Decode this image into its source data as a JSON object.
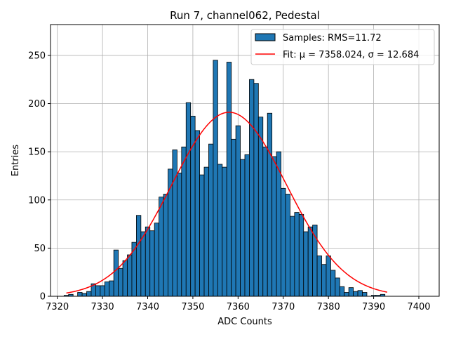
{
  "chart_data": {
    "type": "bar",
    "title": "Run 7, channel062, Pedestal",
    "xlabel": "ADC Counts",
    "ylabel": "Entries",
    "xlim": [
      7318.5,
      7404.5
    ],
    "ylim": [
      0,
      282
    ],
    "xticks": [
      7320,
      7330,
      7340,
      7350,
      7360,
      7370,
      7380,
      7390,
      7400
    ],
    "yticks": [
      0,
      50,
      100,
      150,
      200,
      250
    ],
    "grid": true,
    "legend_position": "top-right",
    "bar_color": "#1f77b4",
    "fit_color": "#ff0000",
    "histogram": {
      "name": "Samples: RMS=11.72",
      "bin_width": 1,
      "bins": [
        {
          "x": 7322,
          "y": 1
        },
        {
          "x": 7323,
          "y": 2
        },
        {
          "x": 7325,
          "y": 4
        },
        {
          "x": 7326,
          "y": 3
        },
        {
          "x": 7327,
          "y": 5
        },
        {
          "x": 7328,
          "y": 13
        },
        {
          "x": 7329,
          "y": 11
        },
        {
          "x": 7330,
          "y": 11
        },
        {
          "x": 7331,
          "y": 15
        },
        {
          "x": 7332,
          "y": 16
        },
        {
          "x": 7333,
          "y": 48
        },
        {
          "x": 7334,
          "y": 29
        },
        {
          "x": 7335,
          "y": 37
        },
        {
          "x": 7336,
          "y": 43
        },
        {
          "x": 7337,
          "y": 56
        },
        {
          "x": 7338,
          "y": 84
        },
        {
          "x": 7339,
          "y": 67
        },
        {
          "x": 7340,
          "y": 72
        },
        {
          "x": 7341,
          "y": 68
        },
        {
          "x": 7342,
          "y": 76
        },
        {
          "x": 7343,
          "y": 103
        },
        {
          "x": 7344,
          "y": 106
        },
        {
          "x": 7345,
          "y": 132
        },
        {
          "x": 7346,
          "y": 152
        },
        {
          "x": 7347,
          "y": 128
        },
        {
          "x": 7348,
          "y": 155
        },
        {
          "x": 7349,
          "y": 201
        },
        {
          "x": 7350,
          "y": 187
        },
        {
          "x": 7351,
          "y": 172
        },
        {
          "x": 7352,
          "y": 126
        },
        {
          "x": 7353,
          "y": 134
        },
        {
          "x": 7354,
          "y": 158
        },
        {
          "x": 7355,
          "y": 245
        },
        {
          "x": 7356,
          "y": 137
        },
        {
          "x": 7357,
          "y": 134
        },
        {
          "x": 7358,
          "y": 243
        },
        {
          "x": 7359,
          "y": 163
        },
        {
          "x": 7360,
          "y": 177
        },
        {
          "x": 7361,
          "y": 142
        },
        {
          "x": 7362,
          "y": 147
        },
        {
          "x": 7363,
          "y": 225
        },
        {
          "x": 7364,
          "y": 221
        },
        {
          "x": 7365,
          "y": 186
        },
        {
          "x": 7366,
          "y": 155
        },
        {
          "x": 7367,
          "y": 190
        },
        {
          "x": 7368,
          "y": 145
        },
        {
          "x": 7369,
          "y": 150
        },
        {
          "x": 7370,
          "y": 112
        },
        {
          "x": 7371,
          "y": 106
        },
        {
          "x": 7372,
          "y": 83
        },
        {
          "x": 7373,
          "y": 87
        },
        {
          "x": 7374,
          "y": 85
        },
        {
          "x": 7375,
          "y": 67
        },
        {
          "x": 7376,
          "y": 72
        },
        {
          "x": 7377,
          "y": 74
        },
        {
          "x": 7378,
          "y": 42
        },
        {
          "x": 7379,
          "y": 33
        },
        {
          "x": 7380,
          "y": 42
        },
        {
          "x": 7381,
          "y": 27
        },
        {
          "x": 7382,
          "y": 19
        },
        {
          "x": 7383,
          "y": 10
        },
        {
          "x": 7384,
          "y": 4
        },
        {
          "x": 7385,
          "y": 9
        },
        {
          "x": 7386,
          "y": 5
        },
        {
          "x": 7387,
          "y": 6
        },
        {
          "x": 7388,
          "y": 4
        },
        {
          "x": 7390,
          "y": 1
        },
        {
          "x": 7391,
          "y": 1
        },
        {
          "x": 7392,
          "y": 2
        }
      ]
    },
    "fit": {
      "name": "Fit: μ = 7358.024, σ = 12.684",
      "type": "gaussian",
      "mu": 7358.024,
      "sigma": 12.684,
      "amplitude": 191,
      "x_range": [
        7322,
        7393
      ]
    }
  }
}
